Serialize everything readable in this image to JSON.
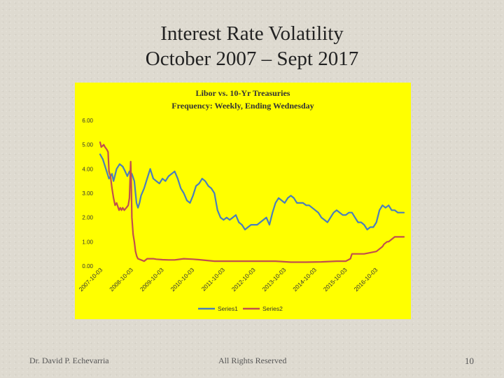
{
  "slide": {
    "title_line1": "Interest Rate Volatility",
    "title_line2": "October 2007 – Sept 2017",
    "footer_author": "Dr. David P. Echevarria",
    "footer_rights": "All Rights Reserved",
    "page_number": "10"
  },
  "colors": {
    "background": "#ffff00",
    "series1": "#4a7ebb",
    "series2": "#c0504d"
  },
  "chart_data": {
    "type": "line",
    "title": "Libor vs. 10-Yr Treasuries",
    "subtitle": "Frequency: Weekly, Ending Wednesday",
    "ylim": [
      0,
      6
    ],
    "yticks": [
      "0.00",
      "1.00",
      "2.00",
      "3.00",
      "4.00",
      "5.00",
      "6.00"
    ],
    "xlim": [
      2007.76,
      2017.7
    ],
    "xticks": [
      {
        "x": 2007.76,
        "label": "2007-10-03"
      },
      {
        "x": 2008.76,
        "label": "2008-10-03"
      },
      {
        "x": 2009.76,
        "label": "2009-10-03"
      },
      {
        "x": 2010.76,
        "label": "2010-10-03"
      },
      {
        "x": 2011.76,
        "label": "2011-10-03"
      },
      {
        "x": 2012.76,
        "label": "2012-10-03"
      },
      {
        "x": 2013.76,
        "label": "2013-10-03"
      },
      {
        "x": 2014.76,
        "label": "2014-10-03"
      },
      {
        "x": 2015.76,
        "label": "2015-10-03"
      },
      {
        "x": 2016.76,
        "label": "2016-10-03"
      }
    ],
    "legend_position": "bottom",
    "series": [
      {
        "name": "Series1",
        "x": [
          2007.76,
          2007.85,
          2007.95,
          2008.05,
          2008.15,
          2008.2,
          2008.3,
          2008.4,
          2008.5,
          2008.58,
          2008.65,
          2008.72,
          2008.8,
          2008.88,
          2008.92,
          2008.95,
          2009.0,
          2009.05,
          2009.1,
          2009.2,
          2009.3,
          2009.4,
          2009.45,
          2009.5,
          2009.6,
          2009.7,
          2009.8,
          2009.9,
          2010.0,
          2010.1,
          2010.2,
          2010.3,
          2010.4,
          2010.5,
          2010.6,
          2010.7,
          2010.8,
          2010.9,
          2011.0,
          2011.1,
          2011.2,
          2011.3,
          2011.4,
          2011.5,
          2011.6,
          2011.7,
          2011.8,
          2011.9,
          2012.0,
          2012.1,
          2012.2,
          2012.3,
          2012.4,
          2012.5,
          2012.6,
          2012.7,
          2012.8,
          2012.9,
          2013.0,
          2013.1,
          2013.2,
          2013.3,
          2013.4,
          2013.5,
          2013.6,
          2013.7,
          2013.8,
          2013.9,
          2014.0,
          2014.1,
          2014.2,
          2014.3,
          2014.4,
          2014.5,
          2014.6,
          2014.7,
          2014.8,
          2014.9,
          2015.0,
          2015.1,
          2015.2,
          2015.3,
          2015.4,
          2015.5,
          2015.6,
          2015.7,
          2015.8,
          2015.9,
          2016.0,
          2016.1,
          2016.2,
          2016.3,
          2016.4,
          2016.5,
          2016.6,
          2016.7,
          2016.8,
          2016.9,
          2017.0,
          2017.1,
          2017.2,
          2017.3,
          2017.4,
          2017.5,
          2017.6,
          2017.7
        ],
        "values": [
          4.6,
          4.4,
          4.0,
          3.6,
          3.8,
          3.5,
          4.0,
          4.2,
          4.1,
          3.9,
          3.7,
          3.9,
          3.8,
          3.5,
          3.0,
          2.6,
          2.4,
          2.6,
          2.9,
          3.2,
          3.6,
          4.0,
          3.8,
          3.6,
          3.5,
          3.4,
          3.6,
          3.5,
          3.7,
          3.8,
          3.9,
          3.6,
          3.2,
          3.0,
          2.7,
          2.6,
          2.9,
          3.3,
          3.4,
          3.6,
          3.5,
          3.3,
          3.2,
          3.0,
          2.3,
          2.0,
          1.9,
          2.0,
          1.9,
          2.0,
          2.1,
          1.8,
          1.7,
          1.5,
          1.6,
          1.7,
          1.7,
          1.7,
          1.8,
          1.9,
          2.0,
          1.7,
          2.2,
          2.6,
          2.8,
          2.7,
          2.6,
          2.8,
          2.9,
          2.8,
          2.6,
          2.6,
          2.6,
          2.5,
          2.5,
          2.4,
          2.3,
          2.2,
          2.0,
          1.9,
          1.8,
          2.0,
          2.2,
          2.3,
          2.2,
          2.1,
          2.1,
          2.2,
          2.2,
          2.0,
          1.8,
          1.8,
          1.7,
          1.5,
          1.6,
          1.6,
          1.8,
          2.3,
          2.5,
          2.4,
          2.5,
          2.3,
          2.3,
          2.2,
          2.2,
          2.2
        ]
      },
      {
        "name": "Series2",
        "x": [
          2007.76,
          2007.8,
          2007.88,
          2007.92,
          2007.98,
          2008.02,
          2008.05,
          2008.1,
          2008.15,
          2008.2,
          2008.25,
          2008.3,
          2008.38,
          2008.42,
          2008.46,
          2008.5,
          2008.55,
          2008.62,
          2008.68,
          2008.72,
          2008.76,
          2008.78,
          2008.8,
          2008.84,
          2008.88,
          2008.92,
          2008.96,
          2009.0,
          2009.1,
          2009.2,
          2009.3,
          2009.4,
          2009.5,
          2009.6,
          2009.8,
          2010.0,
          2010.2,
          2010.5,
          2010.8,
          2011.0,
          2011.5,
          2011.8,
          2012.0,
          2012.5,
          2013.0,
          2013.5,
          2014.0,
          2014.5,
          2015.0,
          2015.5,
          2015.8,
          2015.95,
          2016.0,
          2016.2,
          2016.4,
          2016.6,
          2016.8,
          2016.9,
          2017.0,
          2017.05,
          2017.15,
          2017.2,
          2017.3,
          2017.4,
          2017.5,
          2017.7
        ],
        "values": [
          5.1,
          4.9,
          5.0,
          4.9,
          4.8,
          4.7,
          3.9,
          3.7,
          3.2,
          2.8,
          2.5,
          2.6,
          2.3,
          2.4,
          2.3,
          2.4,
          2.3,
          2.4,
          2.5,
          2.8,
          4.3,
          3.5,
          2.0,
          1.3,
          1.0,
          0.6,
          0.4,
          0.3,
          0.25,
          0.2,
          0.3,
          0.3,
          0.3,
          0.28,
          0.26,
          0.25,
          0.25,
          0.3,
          0.28,
          0.26,
          0.2,
          0.2,
          0.2,
          0.2,
          0.2,
          0.2,
          0.16,
          0.16,
          0.17,
          0.2,
          0.2,
          0.3,
          0.5,
          0.5,
          0.5,
          0.55,
          0.6,
          0.7,
          0.8,
          0.9,
          1.0,
          1.0,
          1.1,
          1.2,
          1.2,
          1.2
        ]
      }
    ]
  }
}
